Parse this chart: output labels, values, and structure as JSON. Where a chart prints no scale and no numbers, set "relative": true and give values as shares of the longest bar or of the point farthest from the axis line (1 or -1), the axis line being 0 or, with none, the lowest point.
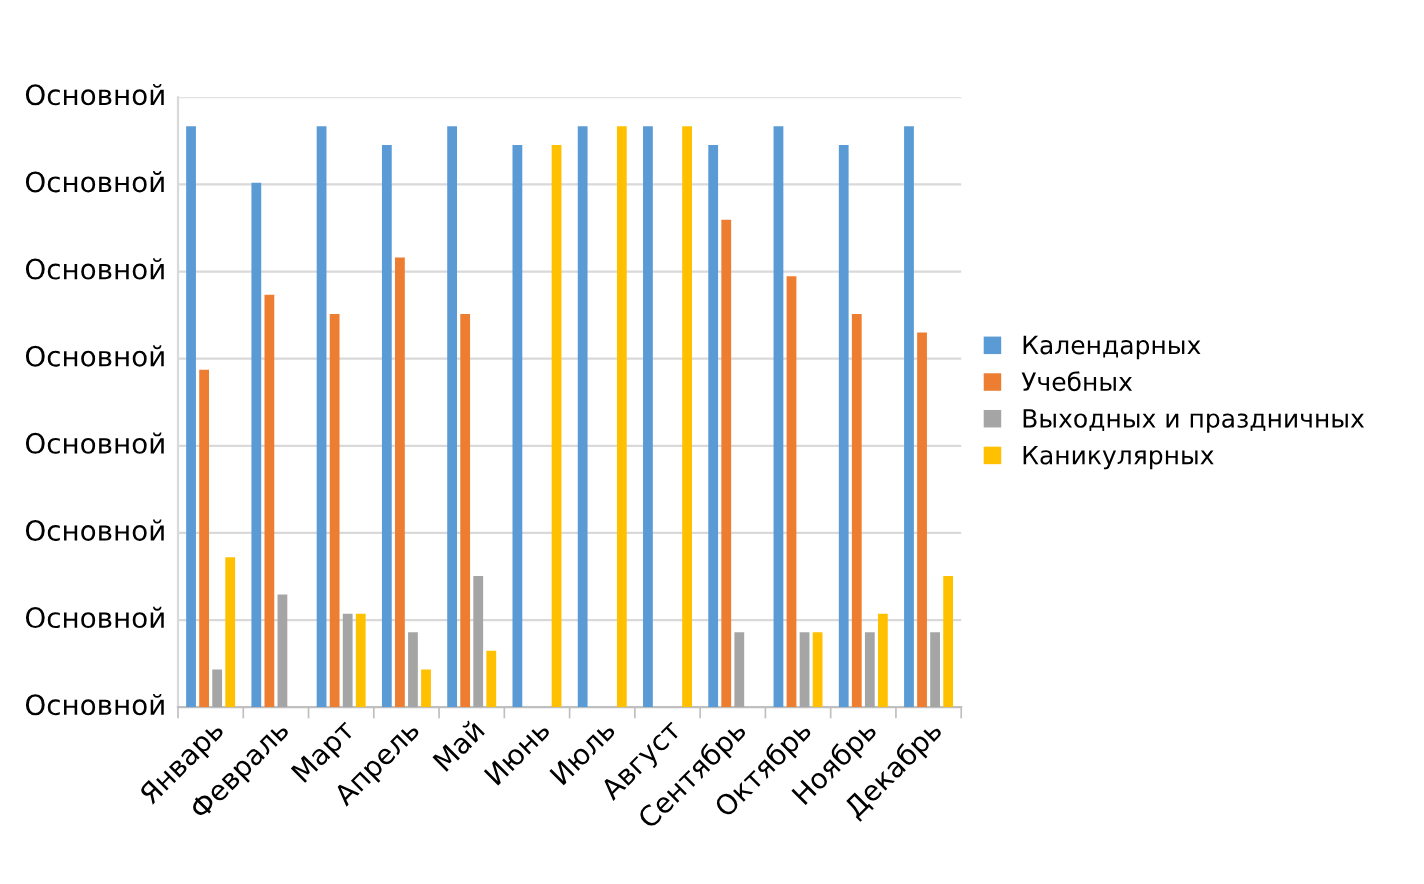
{
  "chart_data": {
    "type": "bar",
    "relative": true,
    "categories": [
      "Январь",
      "Февраль",
      "Март",
      "Апрель",
      "Май",
      "Июнь",
      "Июль",
      "Август",
      "Сентябрь",
      "Октябрь",
      "Ноябрь",
      "Декабрь"
    ],
    "series": [
      {
        "name": "Календарных",
        "color": "#5b9bd5",
        "values": [
          1,
          0.903,
          1,
          0.968,
          1,
          0.968,
          1,
          1,
          0.968,
          1,
          0.968,
          1
        ]
      },
      {
        "name": "Учебных",
        "color": "#ed7d31",
        "values": [
          0.581,
          0.71,
          0.677,
          0.774,
          0.677,
          0,
          0,
          0,
          0.839,
          0.742,
          0.677,
          0.645
        ]
      },
      {
        "name": "Выходных и праздничных",
        "color": "#a5a5a5",
        "values": [
          0.065,
          0.194,
          0.161,
          0.129,
          0.226,
          0,
          0,
          0,
          0.129,
          0.129,
          0.129,
          0.129
        ]
      },
      {
        "name": "Каникулярных",
        "color": "#ffc000",
        "values": [
          0.258,
          0,
          0.161,
          0.065,
          0.097,
          0.968,
          1,
          1,
          0,
          0.129,
          0.161,
          0.226
        ]
      }
    ],
    "annotations": [
      "Основной",
      "Основной",
      "Основной",
      "Основной",
      "Основной",
      "Основной",
      "Основной",
      "Основной"
    ],
    "grid": "y",
    "legend": "right"
  }
}
